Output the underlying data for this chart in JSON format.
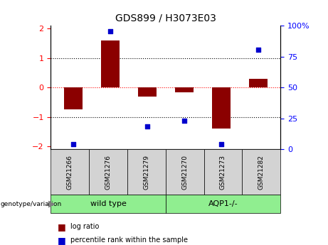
{
  "title": "GDS899 / H3073E03",
  "samples": [
    "GSM21266",
    "GSM21276",
    "GSM21279",
    "GSM21270",
    "GSM21273",
    "GSM21282"
  ],
  "log_ratio": [
    -0.75,
    1.6,
    -0.3,
    -0.15,
    -1.4,
    0.3
  ],
  "percentile_rank": [
    2,
    98,
    17,
    22,
    2,
    82
  ],
  "bar_color": "#8B0000",
  "dot_color": "#0000CD",
  "ylim": [
    -2.1,
    2.1
  ],
  "yticks_left": [
    -2,
    -1,
    0,
    1,
    2
  ],
  "yticks_right": [
    0,
    25,
    50,
    75,
    100
  ],
  "hlines": [
    -1.0,
    0.0,
    1.0
  ],
  "hline_colors": [
    "black",
    "red",
    "black"
  ],
  "hline_styles": [
    "dotted",
    "dotted",
    "dotted"
  ],
  "bar_width": 0.5,
  "gray_color": "#D3D3D3",
  "green_color": "#90EE90",
  "group_defs": [
    {
      "label": "wild type",
      "start": 0,
      "end": 3
    },
    {
      "label": "AQP1-/-",
      "start": 3,
      "end": 6
    }
  ],
  "label_log_ratio": "log ratio",
  "label_percentile": "percentile rank within the sample"
}
